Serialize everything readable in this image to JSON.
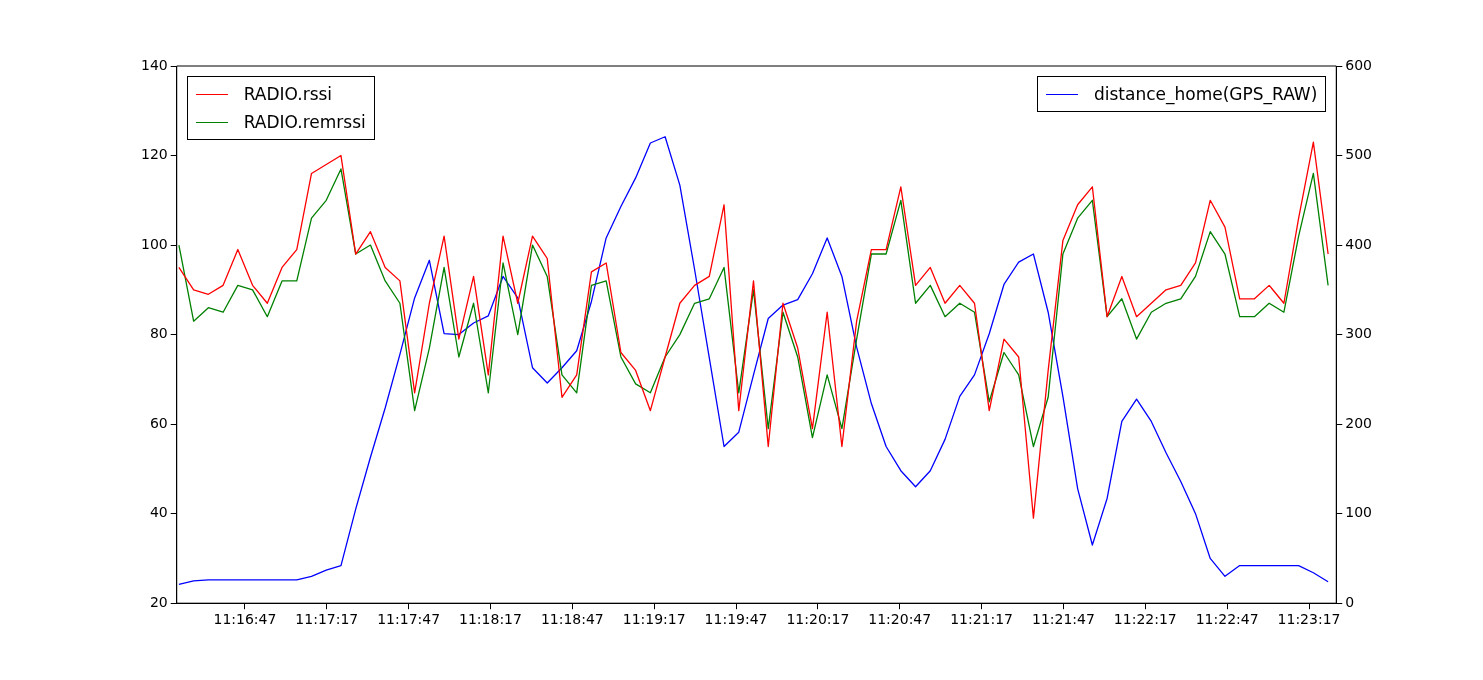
{
  "chart_data": {
    "type": "line",
    "legend": "top left",
    "line_style": "solid",
    "marker": "none",
    "grid": false,
    "x": [
      11.273,
      11.2745,
      11.276,
      11.2775,
      11.279,
      11.2805,
      11.282,
      11.2835,
      11.285,
      11.2865,
      11.288,
      11.2895,
      11.291,
      11.2925,
      11.294,
      11.2955,
      11.297,
      11.2985,
      11.3,
      11.3015,
      11.303,
      11.3045,
      11.306,
      11.3075,
      11.309,
      11.3105,
      11.312,
      11.3135,
      11.315,
      11.3165,
      11.318,
      11.3195,
      11.321,
      11.3225,
      11.324,
      11.3255,
      11.327,
      11.3285,
      11.33,
      11.3315,
      11.333,
      11.3345,
      11.336,
      11.3375,
      11.339,
      11.3405,
      11.342,
      11.3435,
      11.345,
      11.3465,
      11.348,
      11.3495,
      11.351,
      11.3525,
      11.354,
      11.3555,
      11.357,
      11.3585,
      11.36,
      11.3615,
      11.363,
      11.3645,
      11.366,
      11.3675,
      11.369,
      11.3705,
      11.372,
      11.3735,
      11.375,
      11.3765,
      11.378,
      11.3795,
      11.381,
      11.3825,
      11.384,
      11.3855,
      11.387,
      11.3885,
      11.39
    ],
    "xlim": [
      11.272778,
      11.390833
    ],
    "xticks": [
      {
        "value": 11.279722,
        "label": "11:16:47"
      },
      {
        "value": 11.288056,
        "label": "11:17:17"
      },
      {
        "value": 11.296389,
        "label": "11:17:47"
      },
      {
        "value": 11.304722,
        "label": "11:18:17"
      },
      {
        "value": 11.313056,
        "label": "11:18:47"
      },
      {
        "value": 11.321389,
        "label": "11:19:17"
      },
      {
        "value": 11.329722,
        "label": "11:19:47"
      },
      {
        "value": 11.338056,
        "label": "11:20:17"
      },
      {
        "value": 11.346389,
        "label": "11:20:47"
      },
      {
        "value": 11.354722,
        "label": "11:21:17"
      },
      {
        "value": 11.363056,
        "label": "11:21:47"
      },
      {
        "value": 11.371389,
        "label": "11:22:17"
      },
      {
        "value": 11.379722,
        "label": "11:22:47"
      },
      {
        "value": 11.388056,
        "label": "11:23:17"
      }
    ],
    "ylim": [
      20,
      140
    ],
    "yticks": [
      20,
      40,
      60,
      80,
      100,
      120,
      140
    ],
    "y2lim": [
      0,
      600
    ],
    "y2ticks": [
      0,
      100,
      200,
      300,
      400,
      500,
      600
    ],
    "series": [
      {
        "name": "RADIO.rssi",
        "color": "#ff0000",
        "values": [
          95,
          90,
          89,
          91,
          99,
          91,
          87,
          95,
          99,
          116,
          118,
          120,
          98,
          103,
          95,
          92,
          67,
          87,
          102,
          79,
          93,
          71,
          102,
          87,
          102,
          97,
          66,
          71,
          94,
          96,
          76,
          72,
          63,
          75,
          87,
          91,
          93,
          109,
          63,
          92,
          55,
          87,
          77,
          59,
          85,
          55,
          83,
          99,
          99,
          113,
          91,
          95,
          87,
          91,
          87,
          63,
          79,
          75,
          39,
          72,
          101,
          109,
          113,
          84,
          93,
          84,
          87,
          90,
          91,
          96,
          110,
          104,
          88,
          88,
          91,
          87,
          106,
          123,
          98
        ]
      },
      {
        "name": "RADIO.remrssi",
        "color": "#008000",
        "values": [
          100,
          83,
          86,
          85,
          91,
          90,
          84,
          92,
          92,
          106,
          110,
          117,
          98,
          100,
          92,
          87,
          63,
          77,
          95,
          75,
          87,
          67,
          96,
          80,
          100,
          93,
          71,
          67,
          91,
          92,
          75,
          69,
          67,
          75,
          80,
          87,
          88,
          95,
          67,
          90,
          59,
          85,
          75,
          57,
          71,
          59,
          79,
          98,
          98,
          110,
          87,
          91,
          84,
          87,
          85,
          65,
          76,
          71,
          55,
          66,
          98,
          106,
          110,
          84,
          88,
          79,
          85,
          87,
          88,
          93,
          103,
          98,
          84,
          84,
          87,
          85,
          102,
          116,
          91
        ]
      },
      {
        "name": "distance_home(GPS_RAW)",
        "color": "#0000ff",
        "axis": "y2",
        "values": [
          21,
          25,
          26,
          26,
          26,
          26,
          26,
          26,
          26,
          30,
          37,
          42,
          105,
          163,
          218,
          278,
          341,
          383,
          301,
          300,
          313,
          321,
          365,
          341,
          263,
          246,
          263,
          282,
          337,
          408,
          443,
          475,
          514,
          521,
          467,
          373,
          274,
          175,
          191,
          255,
          318,
          333,
          339,
          368,
          408,
          365,
          286,
          223,
          175,
          148,
          130,
          148,
          183,
          231,
          255,
          301,
          356,
          381,
          390,
          325,
          231,
          128,
          65,
          117,
          203,
          228,
          203,
          168,
          136,
          100,
          50,
          30,
          42,
          42,
          42,
          42,
          42,
          34,
          24
        ]
      }
    ]
  }
}
